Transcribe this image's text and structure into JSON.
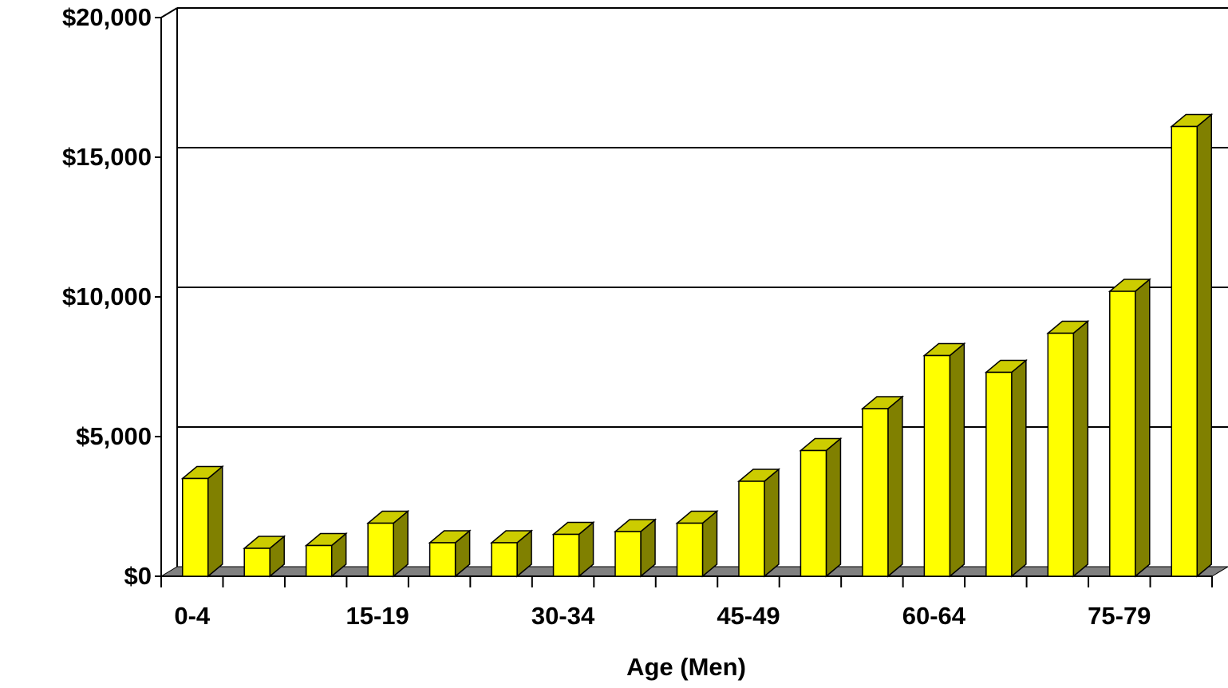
{
  "chart_data": {
    "type": "bar3d",
    "x_label": "Age (Men)",
    "categories": [
      "0-4",
      null,
      null,
      "15-19",
      null,
      null,
      "30-34",
      null,
      null,
      "45-49",
      null,
      null,
      "60-64",
      null,
      null,
      "75-79",
      null
    ],
    "values": [
      3500,
      1000,
      1100,
      1900,
      1200,
      1200,
      1500,
      1600,
      1900,
      3400,
      4500,
      6000,
      7900,
      7300,
      8700,
      10200,
      16100
    ],
    "color": "#ffff00",
    "side_color": "#808000",
    "top_color": "#cccc00",
    "floor_color": "#808080",
    "ylim": [
      0,
      20000
    ],
    "yticks": [
      {
        "value": 0,
        "label": "$0"
      },
      {
        "value": 5000,
        "label": "$5,000"
      },
      {
        "value": 10000,
        "label": "$10,000"
      },
      {
        "value": 15000,
        "label": "$15,000"
      },
      {
        "value": 20000,
        "label": "$20,000"
      }
    ],
    "grid": true
  }
}
